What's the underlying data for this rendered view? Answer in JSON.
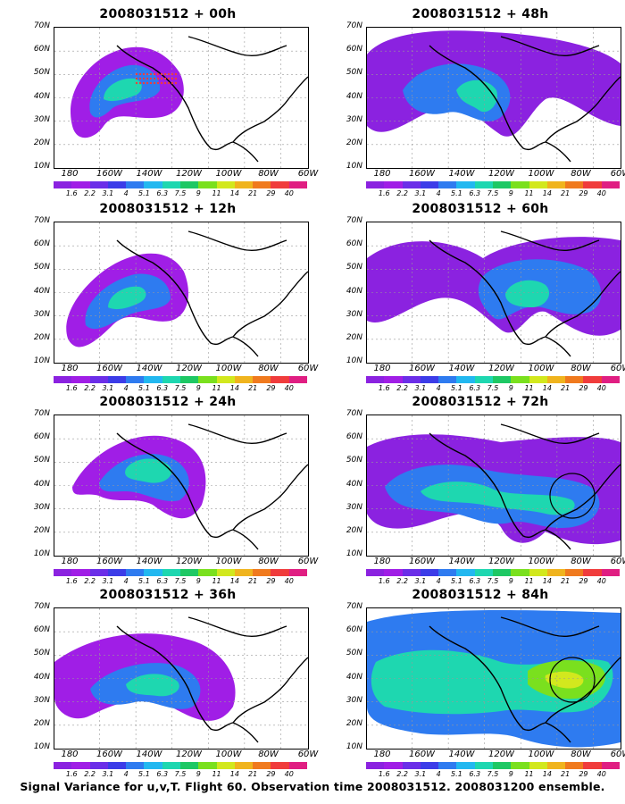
{
  "panels": [
    {
      "title": "2008031512 + 00h"
    },
    {
      "title": "2008031512 + 48h"
    },
    {
      "title": "2008031512 + 12h"
    },
    {
      "title": "2008031512 + 60h"
    },
    {
      "title": "2008031512 + 24h"
    },
    {
      "title": "2008031512 + 72h"
    },
    {
      "title": "2008031512 + 36h"
    },
    {
      "title": "2008031512 + 84h"
    }
  ],
  "lat_labels": [
    "70N",
    "60N",
    "50N",
    "40N",
    "30N",
    "20N",
    "10N"
  ],
  "lon_labels": [
    "180",
    "160W",
    "140W",
    "120W",
    "100W",
    "80W",
    "60W"
  ],
  "colorbar": {
    "levels": [
      "1.6",
      "2.2",
      "3.1",
      "4",
      "5.1",
      "6.3",
      "7.5",
      "9",
      "11",
      "14",
      "21",
      "29",
      "40"
    ],
    "colors": [
      "#8b22e0",
      "#a01ee6",
      "#6b2ee8",
      "#3c3ce8",
      "#2e7bf0",
      "#22b8f0",
      "#1ed7b0",
      "#1ec864",
      "#7ae01e",
      "#d2e81e",
      "#f0b41e",
      "#f07a1e",
      "#f03c3c",
      "#e01e82"
    ]
  },
  "footer": "Signal Variance for u,v,T. Flight 60. Observation time 2008031512. 2008031200 ensemble."
}
